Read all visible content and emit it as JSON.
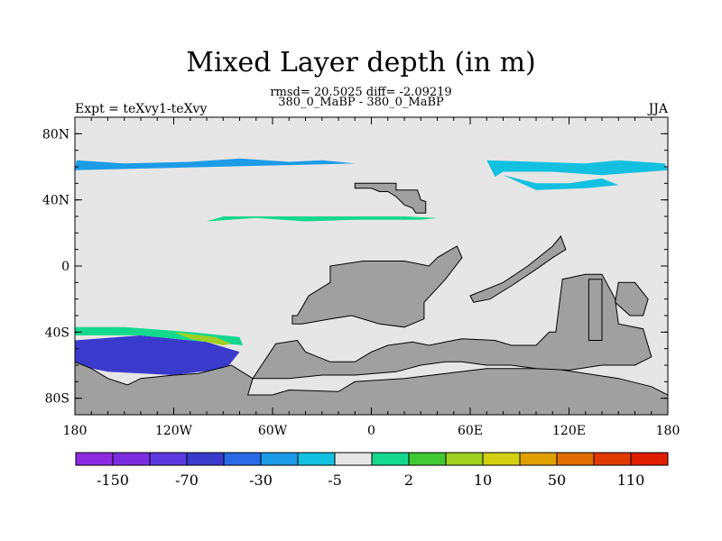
{
  "title": "Mixed Layer depth (in m)",
  "stats_text": "rmsd= 20.5025 diff= -2.09219",
  "case_text": "380_0_MaBP - 380_0_MaBP",
  "left_string": "Expt = teXvy1-teXvy",
  "right_string": "JJA",
  "colors": {
    "background_ocean": "#e6e6e6",
    "land": "#a0a0a0",
    "land_outline": "#000000"
  },
  "chart_data": {
    "type": "heatmap",
    "projection": "cylindrical-equidistant",
    "xlim": [
      -180,
      180
    ],
    "ylim": [
      -90,
      90
    ],
    "x_ticks": [
      {
        "value": -180,
        "label": "180"
      },
      {
        "value": -120,
        "label": "120W"
      },
      {
        "value": -60,
        "label": "60W"
      },
      {
        "value": 0,
        "label": "0"
      },
      {
        "value": 60,
        "label": "60E"
      },
      {
        "value": 120,
        "label": "120E"
      },
      {
        "value": 180,
        "label": "180"
      }
    ],
    "y_ticks": [
      {
        "value": 80,
        "label": "80N"
      },
      {
        "value": 40,
        "label": "40N"
      },
      {
        "value": 0,
        "label": "0"
      },
      {
        "value": -40,
        "label": "40S"
      },
      {
        "value": -80,
        "label": "80S"
      }
    ],
    "colorbar": {
      "colors": [
        "#8a2be2",
        "#7b2ee0",
        "#5a3ae0",
        "#3a3acc",
        "#2a6ae6",
        "#1c9be6",
        "#14c0e0",
        "#e6e6e6",
        "#14d890",
        "#42c832",
        "#a0d020",
        "#d2d010",
        "#e0a000",
        "#e06e00",
        "#e03a00",
        "#e01e00"
      ],
      "labels": [
        "-150",
        "-70",
        "-30",
        "-5",
        "2",
        "10",
        "50",
        "110"
      ]
    },
    "regions": [
      {
        "level": -5,
        "color": "#1c9be6",
        "points": [
          [
            -179,
            64
          ],
          [
            -150,
            62
          ],
          [
            -110,
            63
          ],
          [
            -80,
            65
          ],
          [
            -50,
            63
          ],
          [
            -30,
            64
          ],
          [
            -10,
            62
          ],
          [
            -180,
            58
          ]
        ]
      },
      {
        "level": -5,
        "color": "#14c0e0",
        "points": [
          [
            70,
            64
          ],
          [
            100,
            63
          ],
          [
            130,
            62
          ],
          [
            150,
            64
          ],
          [
            178,
            62
          ],
          [
            180,
            58
          ],
          [
            140,
            55
          ],
          [
            110,
            57
          ],
          [
            80,
            57
          ],
          [
            75,
            54
          ]
        ]
      },
      {
        "level": -5,
        "color": "#14c0e0",
        "points": [
          [
            80,
            55
          ],
          [
            100,
            50
          ],
          [
            120,
            50
          ],
          [
            140,
            53
          ],
          [
            150,
            49
          ],
          [
            130,
            47
          ],
          [
            100,
            46
          ]
        ]
      },
      {
        "level": -150,
        "color": "#8a2be2",
        "points": [
          [
            -180,
            -47
          ],
          [
            -160,
            -45
          ],
          [
            -130,
            -47
          ],
          [
            -100,
            -50
          ],
          [
            -85,
            -55
          ],
          [
            -90,
            -60
          ],
          [
            -110,
            -63
          ],
          [
            -150,
            -60
          ],
          [
            -180,
            -58
          ]
        ]
      },
      {
        "level": -70,
        "color": "#3a3acc",
        "points": [
          [
            -180,
            -45
          ],
          [
            -140,
            -42
          ],
          [
            -100,
            -46
          ],
          [
            -80,
            -52
          ],
          [
            -88,
            -62
          ],
          [
            -120,
            -66
          ],
          [
            -160,
            -64
          ],
          [
            -180,
            -60
          ]
        ]
      },
      {
        "level": 2,
        "color": "#14d890",
        "points": [
          [
            -180,
            -37
          ],
          [
            -150,
            -37
          ],
          [
            -110,
            -40
          ],
          [
            -80,
            -43
          ],
          [
            -78,
            -48
          ],
          [
            -100,
            -46
          ],
          [
            -140,
            -42
          ],
          [
            -180,
            -42
          ]
        ]
      },
      {
        "level": 10,
        "color": "#a0d020",
        "points": [
          [
            -120,
            -40
          ],
          [
            -95,
            -43
          ],
          [
            -85,
            -47
          ],
          [
            -90,
            -48
          ],
          [
            -110,
            -44
          ]
        ]
      },
      {
        "level": 2,
        "color": "#14d890",
        "points": [
          [
            -100,
            27
          ],
          [
            -70,
            29
          ],
          [
            -40,
            27
          ],
          [
            -10,
            28
          ],
          [
            30,
            28
          ],
          [
            40,
            29
          ],
          [
            20,
            30
          ],
          [
            -40,
            30
          ],
          [
            -90,
            30
          ]
        ]
      }
    ]
  },
  "land_polygons": [
    {
      "name": "north-america-patch",
      "points": [
        [
          -10,
          50
        ],
        [
          15,
          50
        ],
        [
          15,
          46
        ],
        [
          28,
          46
        ],
        [
          30,
          40
        ],
        [
          33,
          39
        ],
        [
          33,
          32
        ],
        [
          27,
          32
        ],
        [
          25,
          35
        ],
        [
          20,
          37
        ],
        [
          15,
          42
        ],
        [
          10,
          45
        ],
        [
          5,
          45
        ],
        [
          0,
          47
        ],
        [
          -10,
          47
        ]
      ]
    },
    {
      "name": "africa-arabia",
      "points": [
        [
          -45,
          -30
        ],
        [
          -38,
          -18
        ],
        [
          -25,
          -10
        ],
        [
          -25,
          0
        ],
        [
          -5,
          3
        ],
        [
          5,
          3
        ],
        [
          20,
          3
        ],
        [
          35,
          0
        ],
        [
          40,
          5
        ],
        [
          45,
          8
        ],
        [
          52,
          12
        ],
        [
          55,
          5
        ],
        [
          45,
          -8
        ],
        [
          32,
          -22
        ],
        [
          32,
          -32
        ],
        [
          20,
          -37
        ],
        [
          5,
          -35
        ],
        [
          -12,
          -30
        ],
        [
          -25,
          -32
        ],
        [
          -42,
          -35
        ],
        [
          -48,
          -35
        ],
        [
          -48,
          -30
        ]
      ]
    },
    {
      "name": "south-ring",
      "points": [
        [
          -180,
          -58
        ],
        [
          -170,
          -62
        ],
        [
          -160,
          -68
        ],
        [
          -148,
          -72
        ],
        [
          -140,
          -68
        ],
        [
          -120,
          -66
        ],
        [
          -105,
          -65
        ],
        [
          -85,
          -60
        ],
        [
          -72,
          -68
        ],
        [
          -75,
          -78
        ],
        [
          -60,
          -78
        ],
        [
          -50,
          -75
        ],
        [
          -20,
          -76
        ],
        [
          -10,
          -70
        ],
        [
          20,
          -68
        ],
        [
          45,
          -65
        ],
        [
          70,
          -62
        ],
        [
          110,
          -62
        ],
        [
          150,
          -68
        ],
        [
          170,
          -73
        ],
        [
          180,
          -78
        ],
        [
          180,
          -90
        ],
        [
          -180,
          -90
        ]
      ]
    },
    {
      "name": "antarctic-shelf",
      "points": [
        [
          -58,
          -47
        ],
        [
          -45,
          -45
        ],
        [
          -40,
          -52
        ],
        [
          -25,
          -58
        ],
        [
          -10,
          -58
        ],
        [
          0,
          -52
        ],
        [
          10,
          -48
        ],
        [
          25,
          -46
        ],
        [
          35,
          -48
        ],
        [
          45,
          -46
        ],
        [
          55,
          -44
        ],
        [
          75,
          -45
        ],
        [
          85,
          -48
        ],
        [
          100,
          -48
        ],
        [
          108,
          -40
        ],
        [
          112,
          -40
        ],
        [
          116,
          -8
        ],
        [
          130,
          -5
        ],
        [
          140,
          -5
        ],
        [
          148,
          -20
        ],
        [
          150,
          -35
        ],
        [
          165,
          -38
        ],
        [
          170,
          -55
        ],
        [
          160,
          -60
        ],
        [
          140,
          -60
        ],
        [
          120,
          -63
        ],
        [
          100,
          -62
        ],
        [
          85,
          -60
        ],
        [
          70,
          -60
        ],
        [
          55,
          -58
        ],
        [
          45,
          -58
        ],
        [
          30,
          -60
        ],
        [
          15,
          -64
        ],
        [
          -10,
          -66
        ],
        [
          -30,
          -66
        ],
        [
          -50,
          -68
        ],
        [
          -72,
          -68
        ]
      ]
    },
    {
      "name": "india-se-asia",
      "points": [
        [
          60,
          -18
        ],
        [
          80,
          -10
        ],
        [
          95,
          0
        ],
        [
          110,
          12
        ],
        [
          115,
          18
        ],
        [
          118,
          10
        ],
        [
          110,
          5
        ],
        [
          100,
          -2
        ],
        [
          85,
          -12
        ],
        [
          72,
          -20
        ],
        [
          62,
          -22
        ]
      ]
    },
    {
      "name": "east-land",
      "points": [
        [
          132,
          -8
        ],
        [
          140,
          -8
        ],
        [
          140,
          -45
        ],
        [
          132,
          -45
        ]
      ]
    },
    {
      "name": "aus-east",
      "points": [
        [
          150,
          -10
        ],
        [
          160,
          -10
        ],
        [
          168,
          -20
        ],
        [
          165,
          -30
        ],
        [
          157,
          -30
        ],
        [
          148,
          -22
        ]
      ]
    }
  ]
}
